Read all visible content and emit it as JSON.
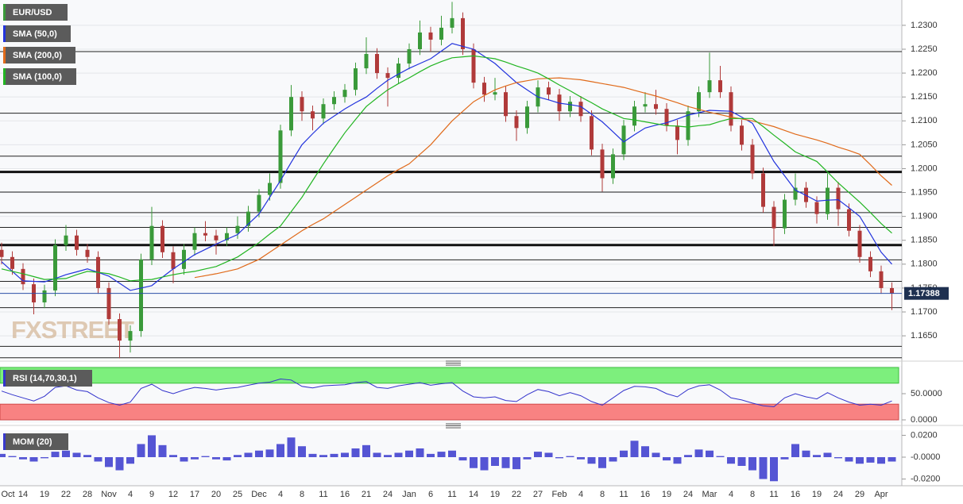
{
  "chart_data": [
    {
      "type": "candlestick",
      "name": "EUR/USD",
      "up_color": "#3a9a3a",
      "down_color": "#b03a3a",
      "watermark": "FXSTREET",
      "categories": [
        "Oct",
        null,
        "14",
        null,
        "19",
        null,
        "22",
        null,
        "28",
        null,
        "Nov",
        null,
        "4",
        null,
        "9",
        null,
        "12",
        null,
        "17",
        null,
        "20",
        null,
        "25",
        null,
        "Dec",
        null,
        "4",
        null,
        "8",
        null,
        "11",
        null,
        "16",
        null,
        "21",
        null,
        "24",
        null,
        "Jan",
        null,
        "6",
        null,
        "11",
        null,
        "14",
        null,
        "19",
        null,
        "22",
        null,
        "27",
        null,
        "Feb",
        null,
        "4",
        null,
        "8",
        null,
        "11",
        null,
        "16",
        null,
        "19",
        null,
        "24",
        null,
        "Mar",
        null,
        "4",
        null,
        "8",
        null,
        "11",
        null,
        "16",
        null,
        "19",
        null,
        "24",
        null,
        "29",
        null,
        "Apr",
        null
      ],
      "candles": [
        [
          1.183,
          1.1845,
          1.18,
          1.1815
        ],
        [
          1.1815,
          1.1827,
          1.1778,
          1.179
        ],
        [
          1.179,
          1.1802,
          1.1746,
          1.1758
        ],
        [
          1.1758,
          1.177,
          1.1695,
          1.172
        ],
        [
          1.172,
          1.1757,
          1.1708,
          1.1745
        ],
        [
          1.1745,
          1.1852,
          1.1733,
          1.184
        ],
        [
          1.184,
          1.1882,
          1.1828,
          1.186
        ],
        [
          1.186,
          1.1872,
          1.1818,
          1.183
        ],
        [
          1.183,
          1.1842,
          1.1803,
          1.1815
        ],
        [
          1.1815,
          1.1827,
          1.1738,
          1.175
        ],
        [
          1.175,
          1.1762,
          1.1673,
          1.1685
        ],
        [
          1.1685,
          1.1697,
          1.1603,
          1.164
        ],
        [
          1.164,
          1.1672,
          1.1615,
          1.166
        ],
        [
          1.166,
          1.1822,
          1.1648,
          1.181
        ],
        [
          1.181,
          1.192,
          1.1798,
          1.188
        ],
        [
          1.188,
          1.1892,
          1.1813,
          1.1825
        ],
        [
          1.1825,
          1.1837,
          1.176,
          1.179
        ],
        [
          1.179,
          1.1842,
          1.1778,
          1.183
        ],
        [
          1.183,
          1.1877,
          1.1818,
          1.1865
        ],
        [
          1.1865,
          1.189,
          1.1848,
          1.186
        ],
        [
          1.186,
          1.1872,
          1.182,
          1.185
        ],
        [
          1.185,
          1.1877,
          1.1838,
          1.1865
        ],
        [
          1.1865,
          1.19,
          1.1853,
          1.188
        ],
        [
          1.188,
          1.1922,
          1.1868,
          1.191
        ],
        [
          1.191,
          1.1957,
          1.1898,
          1.1945
        ],
        [
          1.1945,
          1.199,
          1.1933,
          1.197
        ],
        [
          1.197,
          1.2092,
          1.1958,
          1.208
        ],
        [
          1.208,
          1.2175,
          1.2068,
          1.215
        ],
        [
          1.215,
          1.2162,
          1.21,
          1.212
        ],
        [
          1.212,
          1.2132,
          1.208,
          1.2105
        ],
        [
          1.2105,
          1.2147,
          1.2093,
          1.2135
        ],
        [
          1.2135,
          1.2162,
          1.2123,
          1.215
        ],
        [
          1.215,
          1.2177,
          1.2138,
          1.2165
        ],
        [
          1.2165,
          1.2222,
          1.2153,
          1.221
        ],
        [
          1.221,
          1.2275,
          1.2198,
          1.224
        ],
        [
          1.224,
          1.2252,
          1.2188,
          1.22
        ],
        [
          1.22,
          1.2212,
          1.213,
          1.219
        ],
        [
          1.219,
          1.2232,
          1.2178,
          1.222
        ],
        [
          1.222,
          1.2262,
          1.2208,
          1.225
        ],
        [
          1.225,
          1.231,
          1.2238,
          1.2285
        ],
        [
          1.2285,
          1.2297,
          1.2245,
          1.227
        ],
        [
          1.227,
          1.232,
          1.2258,
          1.2295
        ],
        [
          1.2295,
          1.2349,
          1.2283,
          1.2315
        ],
        [
          1.2315,
          1.2327,
          1.2238,
          1.225
        ],
        [
          1.225,
          1.2262,
          1.2168,
          1.218
        ],
        [
          1.218,
          1.2192,
          1.214,
          1.2155
        ],
        [
          1.2155,
          1.219,
          1.2143,
          1.216
        ],
        [
          1.216,
          1.2172,
          1.2098,
          1.211
        ],
        [
          1.211,
          1.2122,
          1.2058,
          1.2085
        ],
        [
          1.2085,
          1.2142,
          1.2073,
          1.213
        ],
        [
          1.213,
          1.2185,
          1.2118,
          1.217
        ],
        [
          1.217,
          1.2182,
          1.2143,
          1.2155
        ],
        [
          1.2155,
          1.2167,
          1.21,
          1.212
        ],
        [
          1.212,
          1.2152,
          1.2108,
          1.214
        ],
        [
          1.214,
          1.2152,
          1.2098,
          1.211
        ],
        [
          1.211,
          1.2122,
          1.2028,
          1.204
        ],
        [
          1.204,
          1.2052,
          1.1952,
          1.198
        ],
        [
          1.198,
          1.2042,
          1.1968,
          1.203
        ],
        [
          1.203,
          1.2102,
          1.2018,
          1.209
        ],
        [
          1.209,
          1.2142,
          1.2078,
          1.213
        ],
        [
          1.213,
          1.216,
          1.2118,
          1.2135
        ],
        [
          1.2135,
          1.2165,
          1.2113,
          1.2125
        ],
        [
          1.2125,
          1.2137,
          1.2078,
          1.209
        ],
        [
          1.209,
          1.2102,
          1.203,
          1.206
        ],
        [
          1.206,
          1.2132,
          1.2048,
          1.212
        ],
        [
          1.212,
          1.2172,
          1.2108,
          1.216
        ],
        [
          1.216,
          1.2243,
          1.2148,
          1.2185
        ],
        [
          1.2185,
          1.2215,
          1.2148,
          1.216
        ],
        [
          1.216,
          1.2172,
          1.2078,
          1.209
        ],
        [
          1.209,
          1.2102,
          1.2038,
          1.205
        ],
        [
          1.205,
          1.2062,
          1.1978,
          1.199
        ],
        [
          1.199,
          1.2002,
          1.1908,
          1.192
        ],
        [
          1.192,
          1.1932,
          1.1838,
          1.1875
        ],
        [
          1.1875,
          1.1947,
          1.1863,
          1.1935
        ],
        [
          1.1935,
          1.199,
          1.1923,
          1.196
        ],
        [
          1.196,
          1.1972,
          1.1918,
          1.193
        ],
        [
          1.193,
          1.1942,
          1.1885,
          1.1905
        ],
        [
          1.1905,
          1.199,
          1.1893,
          1.196
        ],
        [
          1.196,
          1.1972,
          1.188,
          1.1915
        ],
        [
          1.1915,
          1.1927,
          1.1858,
          1.187
        ],
        [
          1.187,
          1.1882,
          1.1803,
          1.1815
        ],
        [
          1.1815,
          1.1827,
          1.1773,
          1.1785
        ],
        [
          1.1785,
          1.1797,
          1.1738,
          1.175
        ],
        [
          1.175,
          1.1762,
          1.1704,
          1.1739
        ]
      ],
      "series": [
        {
          "name": "SMA (50,0)",
          "color": "#2233dd",
          "values": [
            1.1805,
            1.1785,
            1.1765,
            1.1764,
            1.1763,
            1.177,
            1.1778,
            1.1784,
            1.179,
            1.1783,
            1.1775,
            1.176,
            1.1745,
            1.175,
            1.1755,
            1.1773,
            1.179,
            1.1805,
            1.182,
            1.1831,
            1.1842,
            1.1852,
            1.1862,
            1.1884,
            1.1905,
            1.194,
            1.1975,
            1.2013,
            1.205,
            1.2073,
            1.2095,
            1.211,
            1.2125,
            1.2138,
            1.215,
            1.2168,
            1.2185,
            1.2198,
            1.221,
            1.222,
            1.223,
            1.2246,
            1.2262,
            1.2256,
            1.225,
            1.2235,
            1.222,
            1.22,
            1.218,
            1.2165,
            1.215,
            1.2144,
            1.2137,
            1.2134,
            1.213,
            1.2114,
            1.2098,
            1.2077,
            1.2056,
            1.2071,
            1.2085,
            1.2091,
            1.2096,
            1.2104,
            1.2112,
            1.2117,
            1.2122,
            1.2121,
            1.212,
            1.2108,
            1.2095,
            1.2055,
            1.2015,
            1.1985,
            1.1955,
            1.1944,
            1.1932,
            1.1934,
            1.1935,
            1.1918,
            1.19,
            1.1863,
            1.1825,
            1.18
          ]
        },
        {
          "name": "SMA (200,0)",
          "color": "#e06a1a",
          "values": [
            null,
            null,
            null,
            null,
            null,
            null,
            null,
            null,
            null,
            null,
            null,
            null,
            null,
            null,
            null,
            null,
            null,
            null,
            1.1772,
            1.1776,
            1.178,
            1.1785,
            1.179,
            1.18,
            1.181,
            1.1825,
            1.184,
            1.1855,
            1.187,
            1.1883,
            1.1895,
            1.191,
            1.1925,
            1.194,
            1.1955,
            1.197,
            1.1985,
            1.1998,
            1.201,
            1.203,
            1.205,
            1.2075,
            1.21,
            1.212,
            1.214,
            1.2153,
            1.2165,
            1.2173,
            1.218,
            1.2184,
            1.2188,
            1.2189,
            1.219,
            1.2188,
            1.2186,
            1.2182,
            1.2178,
            1.2174,
            1.217,
            1.2164,
            1.2158,
            1.2152,
            1.2145,
            1.2138,
            1.213,
            1.2124,
            1.2118,
            1.2113,
            1.2108,
            1.2104,
            1.21,
            1.2094,
            1.2088,
            1.208,
            1.2072,
            1.2066,
            1.206,
            1.2053,
            1.2045,
            1.2038,
            1.203,
            1.2008,
            1.1985,
            1.1965
          ]
        },
        {
          "name": "SMA (100,0)",
          "color": "#22b522",
          "values": [
            1.179,
            1.1785,
            1.178,
            1.1774,
            1.1768,
            1.1769,
            1.177,
            1.1778,
            1.1785,
            1.1783,
            1.178,
            1.1773,
            1.1765,
            1.1767,
            1.1768,
            1.1773,
            1.1778,
            1.1782,
            1.1785,
            1.179,
            1.1795,
            1.1805,
            1.1815,
            1.183,
            1.1845,
            1.1863,
            1.188,
            1.191,
            1.194,
            1.1975,
            1.201,
            1.2043,
            1.2075,
            1.2103,
            1.213,
            1.2148,
            1.2165,
            1.2178,
            1.219,
            1.2203,
            1.2215,
            1.2224,
            1.2232,
            1.2234,
            1.2236,
            1.2233,
            1.223,
            1.2223,
            1.2215,
            1.2208,
            1.22,
            1.2188,
            1.2175,
            1.2163,
            1.215,
            1.2138,
            1.2125,
            1.2115,
            1.2105,
            1.2102,
            1.2098,
            1.2094,
            1.209,
            1.2089,
            1.2087,
            1.209,
            1.2092,
            1.2099,
            1.2105,
            1.2105,
            1.2105,
            1.2088,
            1.207,
            1.2053,
            1.2035,
            1.2025,
            1.2015,
            1.1993,
            1.197,
            1.195,
            1.193,
            1.1908,
            1.1885,
            1.1865
          ]
        }
      ],
      "levels": [
        1.2245,
        1.2116,
        1.2026,
        1.1951,
        1.1908,
        1.1877,
        1.1809,
        1.1764,
        1.1709,
        1.1628,
        1.1604
      ],
      "major_levels": [
        1.1993,
        1.184
      ],
      "last_price": 1.17388,
      "last_price_color": "#2b4fa8",
      "ylim": [
        1.1602,
        1.2353
      ],
      "yticks": [
        {
          "value": 1.23,
          "label": "1.2300"
        },
        {
          "value": 1.225,
          "label": "1.2250"
        },
        {
          "value": 1.22,
          "label": "1.2200"
        },
        {
          "value": 1.215,
          "label": "1.2150"
        },
        {
          "value": 1.21,
          "label": "1.2100"
        },
        {
          "value": 1.205,
          "label": "1.2050"
        },
        {
          "value": 1.2,
          "label": "1.2000"
        },
        {
          "value": 1.195,
          "label": "1.1950"
        },
        {
          "value": 1.19,
          "label": "1.1900"
        },
        {
          "value": 1.185,
          "label": "1.1850"
        },
        {
          "value": 1.18,
          "label": "1.1800"
        },
        {
          "value": 1.175,
          "label": "1.1750"
        },
        {
          "value": 1.17,
          "label": "1.1700"
        },
        {
          "value": 1.165,
          "label": "1.1650"
        }
      ],
      "grid": true
    },
    {
      "type": "line",
      "label": "RSI (14,70,30,1)",
      "color": "#3333cc",
      "values": [
        55,
        48,
        42,
        36,
        45,
        62,
        65,
        57,
        54,
        42,
        33,
        28,
        34,
        60,
        68,
        56,
        50,
        57,
        62,
        60,
        57,
        60,
        62,
        66,
        70,
        72,
        78,
        76,
        64,
        61,
        65,
        66,
        67,
        71,
        73,
        62,
        60,
        65,
        68,
        71,
        66,
        69,
        71,
        55,
        44,
        42,
        44,
        37,
        35,
        48,
        58,
        54,
        46,
        52,
        46,
        35,
        28,
        42,
        56,
        64,
        63,
        60,
        50,
        44,
        58,
        65,
        67,
        57,
        42,
        38,
        32,
        27,
        25,
        42,
        50,
        44,
        40,
        52,
        42,
        34,
        28,
        30,
        28,
        36
      ],
      "overbought": 70,
      "oversold": 30,
      "overbought_color": "#7def7d",
      "oversold_color": "#f88282",
      "ylim": [
        0,
        100
      ],
      "yticks": [
        {
          "value": 50,
          "label": "50.0000"
        },
        {
          "value": 0,
          "label": "0.0000"
        }
      ]
    },
    {
      "type": "bar",
      "label": "MOM (20)",
      "color": "#3838cc",
      "values": [
        0.003,
        0.001,
        -0.002,
        -0.004,
        -0.001,
        0.005,
        0.006,
        0.004,
        0.002,
        -0.004,
        -0.009,
        -0.012,
        -0.006,
        0.012,
        0.02,
        0.011,
        0.002,
        -0.004,
        -0.002,
        0.001,
        -0.002,
        -0.003,
        0.002,
        0.004,
        0.006,
        0.007,
        0.012,
        0.018,
        0.01,
        0.003,
        0.002,
        0.003,
        0.004,
        0.008,
        0.011,
        0.004,
        0.002,
        0.004,
        0.006,
        0.008,
        0.003,
        0.005,
        0.006,
        -0.003,
        -0.01,
        -0.012,
        -0.008,
        -0.01,
        -0.011,
        -0.002,
        0.005,
        0.004,
        -0.001,
        0.001,
        -0.002,
        -0.006,
        -0.01,
        -0.004,
        0.006,
        0.015,
        0.01,
        0.004,
        -0.003,
        -0.006,
        0.002,
        0.007,
        0.006,
        0.001,
        -0.006,
        -0.008,
        -0.012,
        -0.02,
        -0.022,
        -0.002,
        0.012,
        0.006,
        0.002,
        0.004,
        -0.001,
        -0.004,
        -0.006,
        -0.005,
        -0.006,
        -0.004
      ],
      "ylim": [
        -0.0247,
        0.0225
      ],
      "yticks": [
        {
          "value": 0.02,
          "label": "0.0200"
        },
        {
          "value": 0,
          "label": "-0.0000"
        },
        {
          "value": -0.02,
          "label": "-0.0200"
        }
      ]
    }
  ]
}
